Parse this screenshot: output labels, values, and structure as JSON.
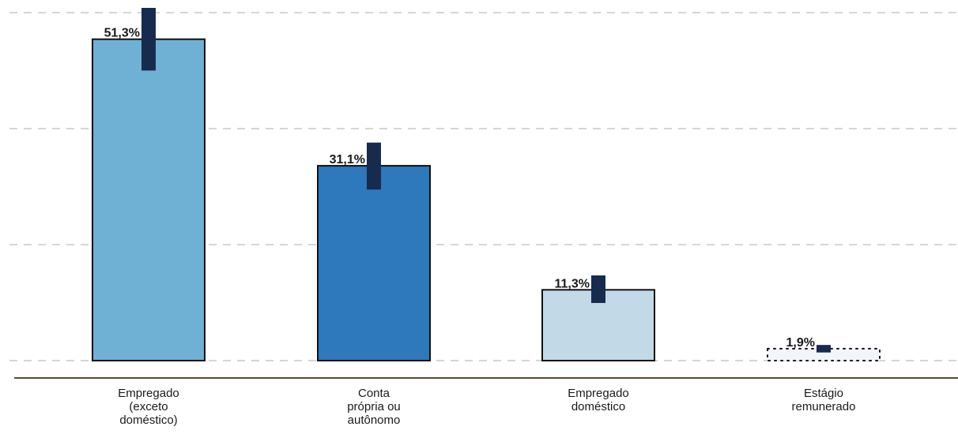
{
  "chart_data": {
    "type": "bar",
    "categories": [
      [
        "Empregado",
        "(exceto",
        "doméstico)"
      ],
      [
        "Conta",
        "própria ou",
        "autônomo"
      ],
      [
        "Empregado",
        "doméstico"
      ],
      [
        "Estágio",
        "remunerado"
      ]
    ],
    "values": [
      51.3,
      31.1,
      11.3,
      1.9
    ],
    "value_labels": [
      "51,3%",
      "31,1%",
      "11,3%",
      "1,9%"
    ],
    "error_bars": [
      [
        46.3,
        56.3
      ],
      [
        27.3,
        34.8
      ],
      [
        9.2,
        13.6
      ],
      [
        1.3,
        2.5
      ]
    ],
    "bar_styles": [
      "solid",
      "solid",
      "solid",
      "dotted"
    ],
    "ylim": [
      0,
      56.3
    ],
    "grid": true,
    "colors": {
      "bars": [
        "#6fb0d5",
        "#2e78bc",
        "#c2d9e7",
        "#f2f6fb"
      ],
      "error_bar": "#172b4f",
      "grid": "#d6d6d6",
      "baseline": "#5c4a38"
    }
  }
}
